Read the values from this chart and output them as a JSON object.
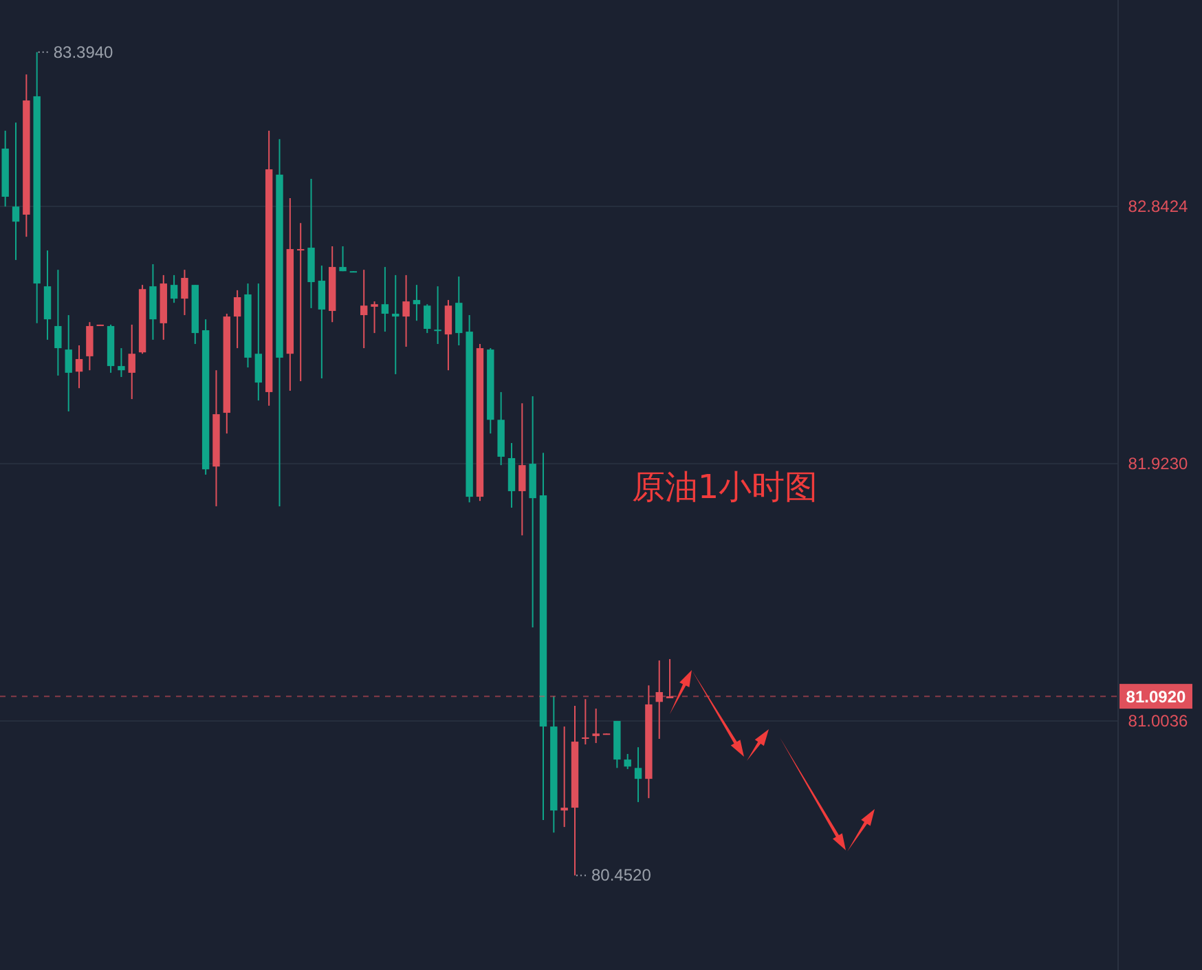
{
  "chart_data": {
    "type": "candlestick",
    "title": "原油1小时图",
    "categories": [
      null,
      null,
      null,
      null,
      null,
      null,
      null,
      null,
      null,
      null,
      null,
      null,
      null,
      null,
      null,
      null,
      null,
      null,
      null,
      null,
      null,
      null,
      null,
      null,
      null,
      null,
      null,
      null,
      null,
      null,
      null,
      null,
      null,
      null,
      null,
      null,
      null,
      null,
      null,
      null,
      null,
      null,
      null,
      null,
      null,
      null,
      null,
      null,
      null,
      null,
      null,
      null,
      null,
      null,
      null,
      null,
      null,
      null,
      null,
      null,
      null,
      null,
      null,
      null,
      null,
      null,
      null,
      null,
      null,
      null,
      null,
      null,
      null,
      null,
      null,
      null,
      null,
      null,
      null,
      null,
      null,
      null,
      null,
      null,
      null,
      null,
      null,
      null,
      null,
      null,
      null,
      null,
      null,
      null,
      null,
      null,
      null,
      null,
      null,
      null,
      null,
      null,
      null,
      null,
      null,
      null
    ],
    "ohlc": [
      [
        83.049,
        83.113,
        82.842,
        82.877
      ],
      [
        82.842,
        83.142,
        82.651,
        82.788
      ],
      [
        82.813,
        83.314,
        82.734,
        83.221
      ],
      [
        83.236,
        83.394,
        82.425,
        82.567
      ],
      [
        82.557,
        82.685,
        82.366,
        82.439
      ],
      [
        82.415,
        82.616,
        82.238,
        82.336
      ],
      [
        82.331,
        82.454,
        82.11,
        82.248
      ],
      [
        82.252,
        82.346,
        82.193,
        82.297
      ],
      [
        82.307,
        82.429,
        82.257,
        82.415
      ],
      [
        82.418,
        82.42,
        82.418,
        82.42
      ],
      [
        82.415,
        82.42,
        82.248,
        82.272
      ],
      [
        82.272,
        82.336,
        82.233,
        82.257
      ],
      [
        82.248,
        82.42,
        82.154,
        82.316
      ],
      [
        82.321,
        82.562,
        82.316,
        82.547
      ],
      [
        82.557,
        82.636,
        82.366,
        82.439
      ],
      [
        82.425,
        82.597,
        82.366,
        82.567
      ],
      [
        82.562,
        82.597,
        82.498,
        82.513
      ],
      [
        82.513,
        82.616,
        82.454,
        82.587
      ],
      [
        82.562,
        82.562,
        82.351,
        82.39
      ],
      [
        82.4,
        82.439,
        81.884,
        81.903
      ],
      [
        81.913,
        82.257,
        81.771,
        82.1
      ],
      [
        82.105,
        82.459,
        82.031,
        82.449
      ],
      [
        82.449,
        82.543,
        82.336,
        82.518
      ],
      [
        82.528,
        82.567,
        82.267,
        82.302
      ],
      [
        82.316,
        82.567,
        82.149,
        82.213
      ],
      [
        82.179,
        83.113,
        82.13,
        82.975
      ],
      [
        82.956,
        83.083,
        81.771,
        82.302
      ],
      [
        82.316,
        82.872,
        82.184,
        82.69
      ],
      [
        82.685,
        82.783,
        82.218,
        82.69
      ],
      [
        82.695,
        82.941,
        82.479,
        82.572
      ],
      [
        82.577,
        82.631,
        82.228,
        82.474
      ],
      [
        82.469,
        82.7,
        82.429,
        82.626
      ],
      [
        82.626,
        82.7,
        82.611,
        82.611
      ],
      [
        82.611,
        82.611,
        82.608,
        82.608
      ],
      [
        82.454,
        82.616,
        82.336,
        82.488
      ],
      [
        82.484,
        82.503,
        82.39,
        82.493
      ],
      [
        82.493,
        82.626,
        82.395,
        82.459
      ],
      [
        82.459,
        82.597,
        82.243,
        82.449
      ],
      [
        82.449,
        82.597,
        82.341,
        82.503
      ],
      [
        82.508,
        82.562,
        82.434,
        82.493
      ],
      [
        82.488,
        82.493,
        82.39,
        82.405
      ],
      [
        82.402,
        82.557,
        82.351,
        82.4
      ],
      [
        82.385,
        82.508,
        82.257,
        82.488
      ],
      [
        82.498,
        82.592,
        82.346,
        82.39
      ],
      [
        82.395,
        82.454,
        81.785,
        81.805
      ],
      [
        81.805,
        82.351,
        81.79,
        82.336
      ],
      [
        82.331,
        82.336,
        82.031,
        82.08
      ],
      [
        82.08,
        82.179,
        81.918,
        81.948
      ],
      [
        81.943,
        81.997,
        81.766,
        81.825
      ],
      [
        81.825,
        82.139,
        81.667,
        81.918
      ],
      [
        81.923,
        82.164,
        81.338,
        81.8
      ],
      [
        81.81,
        81.962,
        80.65,
        80.984
      ],
      [
        80.984,
        81.092,
        80.605,
        80.684
      ],
      [
        80.684,
        80.984,
        80.625,
        80.694
      ],
      [
        80.694,
        81.058,
        80.452,
        80.93
      ],
      [
        80.94,
        81.082,
        80.92,
        80.945
      ],
      [
        80.95,
        81.048,
        80.925,
        80.959
      ],
      [
        80.957,
        80.959,
        80.957,
        80.959
      ],
      [
        81.004,
        81.004,
        80.836,
        80.866
      ],
      [
        80.866,
        80.886,
        80.832,
        80.841
      ],
      [
        80.836,
        80.91,
        80.714,
        80.797
      ],
      [
        80.797,
        81.131,
        80.728,
        81.063
      ],
      [
        81.072,
        81.22,
        80.94,
        81.107
      ],
      [
        81.085,
        81.225,
        81.085,
        81.092
      ],
      null,
      null,
      null,
      null,
      null,
      null,
      null,
      null,
      null,
      null,
      null,
      null,
      null,
      null,
      null,
      null,
      null,
      null,
      null,
      null,
      null,
      null,
      null,
      null,
      null,
      null,
      null,
      null,
      null,
      null,
      null,
      null,
      null,
      null,
      null,
      null,
      null,
      null,
      null,
      null,
      null,
      null
    ],
    "colors": [
      "#0fa68a",
      "#0fa68a",
      "#e0505b",
      "#0fa68a",
      "#0fa68a",
      "#0fa68a",
      "#0fa68a",
      "#e0505b",
      "#e0505b",
      "#e0505b",
      "#0fa68a",
      "#0fa68a",
      "#e0505b",
      "#e0505b",
      "#0fa68a",
      "#e0505b",
      "#0fa68a",
      "#e0505b",
      "#0fa68a",
      "#0fa68a",
      "#e0505b",
      "#e0505b",
      "#e0505b",
      "#0fa68a",
      "#0fa68a",
      "#e0505b",
      "#0fa68a",
      "#e0505b",
      "#e0505b",
      "#0fa68a",
      "#0fa68a",
      "#e0505b",
      "#0fa68a",
      "#0fa68a",
      "#e0505b",
      "#e0505b",
      "#0fa68a",
      "#0fa68a",
      "#e0505b",
      "#0fa68a",
      "#0fa68a",
      "#0fa68a",
      "#e0505b",
      "#0fa68a",
      "#0fa68a",
      "#e0505b",
      "#0fa68a",
      "#0fa68a",
      "#0fa68a",
      "#e0505b",
      "#0fa68a",
      "#0fa68a",
      "#0fa68a",
      "#e0505b",
      "#e0505b",
      "#e0505b",
      "#e0505b",
      "#e0505b",
      "#0fa68a",
      "#0fa68a",
      "#0fa68a",
      "#e0505b",
      "#e0505b",
      "#e0505b",
      null,
      null,
      null,
      null,
      null,
      null,
      null,
      null,
      null,
      null,
      null,
      null,
      null,
      null,
      null,
      null,
      null,
      null,
      null,
      null,
      null,
      null,
      null,
      null,
      null,
      null,
      null,
      null,
      null,
      null,
      null,
      null,
      null,
      null,
      null,
      null,
      null,
      null,
      null,
      null,
      null,
      null
    ],
    "ylim": [
      80.114,
      83.58
    ],
    "yticks": [
      {
        "value": 82.8424,
        "label": "82.8424"
      },
      {
        "value": 81.923,
        "label": "81.9230"
      },
      {
        "value": 81.0036,
        "label": "81.0036"
      }
    ],
    "grid": "y",
    "ref_lines": [
      {
        "axis": "y",
        "value": 81.092,
        "label": "81.0920",
        "color": "#e0505b",
        "line_style": "dashed"
      }
    ],
    "annotations": [
      "83.3940",
      "80.4520"
    ]
  }
}
